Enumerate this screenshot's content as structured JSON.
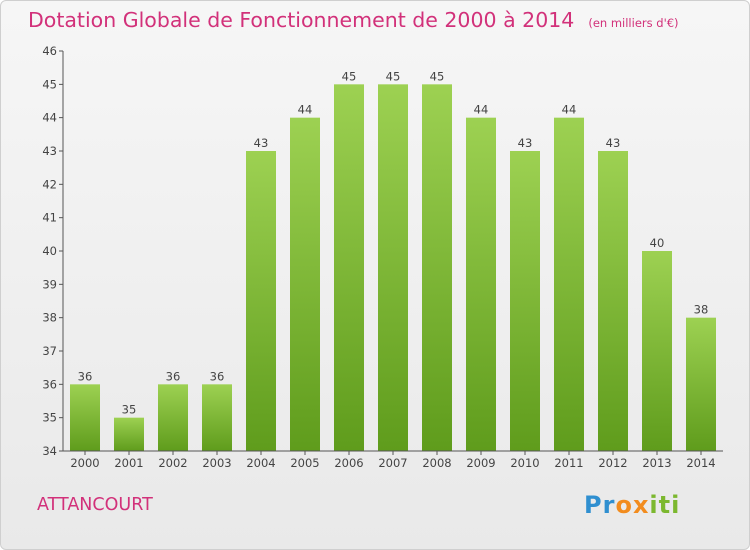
{
  "header": {
    "title": "Dotation Globale de Fonctionnement de 2000 à 2014",
    "unit_note": "(en milliers d'€)"
  },
  "footer": {
    "commune": "ATTANCOURT",
    "logo_text": "Proxiti"
  },
  "colors": {
    "title": "#d2317a",
    "bar_top": "#9dd152",
    "bar_bottom": "#5f9c1c",
    "axis": "#555555"
  },
  "chart_data": {
    "type": "bar",
    "title": "Dotation Globale de Fonctionnement de 2000 à 2014",
    "xlabel": "",
    "ylabel": "",
    "categories": [
      "2000",
      "2001",
      "2002",
      "2003",
      "2004",
      "2005",
      "2006",
      "2007",
      "2008",
      "2009",
      "2010",
      "2011",
      "2012",
      "2013",
      "2014"
    ],
    "values": [
      36,
      35,
      36,
      36,
      43,
      44,
      45,
      45,
      45,
      44,
      43,
      44,
      43,
      40,
      38
    ],
    "ylim": [
      34,
      46
    ],
    "yticks": [
      34,
      35,
      36,
      37,
      38,
      39,
      40,
      41,
      42,
      43,
      44,
      45,
      46
    ],
    "grid": false,
    "data_labels": true
  }
}
